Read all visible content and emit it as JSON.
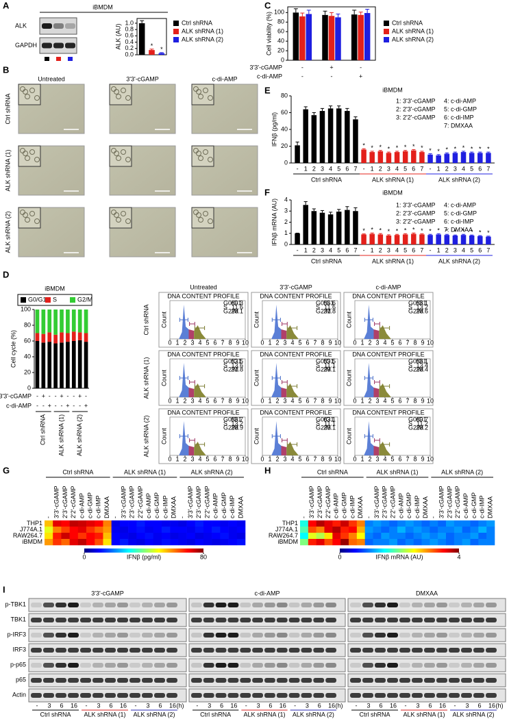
{
  "panel_letters": [
    "A",
    "B",
    "C",
    "D",
    "E",
    "F",
    "G",
    "H",
    "I"
  ],
  "blot_a": {
    "title": "iBMDM",
    "rows": [
      "ALK",
      "GAPDH"
    ],
    "lane_colors": [
      "#000000",
      "#e3201b",
      "#1f1fe0"
    ]
  },
  "micrographs": {
    "columns": [
      "Untreated",
      "3'3'-cGAMP",
      "c-di-AMP"
    ],
    "rows": [
      "Ctrl shRNA",
      "ALK shRNA (1)",
      "ALK shRNA (2)"
    ]
  },
  "flow": {
    "columns": [
      "Untreated",
      "3'3'-cGAMP",
      "c-di-AMP"
    ],
    "rows": [
      "Ctrl shRNA",
      "ALK shRNA (1)",
      "ALK shRNA (2)"
    ],
    "title": "DNA CONTENT PROFILE",
    "y_label": "Count",
    "xticks": [
      0,
      1,
      2,
      3,
      4,
      5,
      6,
      7,
      8,
      9,
      10
    ],
    "stat_names": [
      "G0/G1",
      "S",
      "G2/M"
    ],
    "stats": [
      [
        [
          60.3,
          11.6,
          28.1
        ],
        [
          56.6,
          11.6,
          31.8
        ],
        [
          58.1,
          13.2,
          28.6
        ]
      ],
      [
        [
          53.5,
          13.6,
          31.8
        ],
        [
          59.5,
          11.1,
          29.1
        ],
        [
          58.1,
          13.4,
          28.4
        ]
      ],
      [
        [
          58.7,
          13.2,
          28.9
        ],
        [
          63.1,
          11.1,
          25.1
        ],
        [
          60.7,
          11.2,
          28.2
        ]
      ]
    ]
  },
  "blot_i": {
    "panels": [
      "3'3'-cGAMP",
      "c-di-AMP",
      "DMXAA"
    ],
    "rows": [
      "p-TBK1",
      "TBK1",
      "p-IRF3",
      "IRF3",
      "p-p65",
      "p65",
      "Actin"
    ],
    "lanes": [
      "-",
      "3",
      "6",
      "16"
    ],
    "unit": "(h)",
    "groups": [
      {
        "name": "Ctrl shRNA",
        "color": "#000000"
      },
      {
        "name": "ALK shRNA (1)",
        "color": "#d42020"
      },
      {
        "name": "ALK shRNA (2)",
        "color": "#2a2ab0"
      }
    ]
  },
  "chart_data": [
    {
      "type": "bar",
      "y_label": "ALK (AU)",
      "ylim": [
        0,
        1.15
      ],
      "yticks": [
        {
          "value": 0,
          "label": "0.0"
        },
        0.2,
        0.4,
        0.6,
        0.8,
        {
          "value": 1,
          "label": "1.0"
        }
      ],
      "significance": "*",
      "series": [
        {
          "name": "Ctrl shRNA",
          "color": "#000000",
          "values": [
            1.0
          ],
          "errors": [
            0.08
          ],
          "significant": false
        },
        {
          "name": "ALK shRNA (1)",
          "color": "#e3201b",
          "values": [
            0.15
          ],
          "errors": [
            0.03
          ],
          "significant": true
        },
        {
          "name": "ALK shRNA (2)",
          "color": "#1f1fe0",
          "values": [
            0.05
          ],
          "errors": [
            0.02
          ],
          "significant": true
        }
      ]
    },
    {
      "type": "bar",
      "y_label": "Cell viability (%)",
      "ylim": [
        0,
        112
      ],
      "yticks": [
        0,
        20,
        40,
        60,
        80,
        100
      ],
      "treatments": [
        {
          "label": "3'3'-cGAMP",
          "signs": [
            "-",
            "+",
            "-"
          ]
        },
        {
          "label": "c-di-AMP",
          "signs": [
            "-",
            "-",
            "+"
          ]
        }
      ],
      "series": [
        {
          "name": "Ctrl shRNA",
          "color": "#000000",
          "values": [
            100,
            95,
            96
          ],
          "errors": [
            8,
            8,
            9
          ]
        },
        {
          "name": "ALK shRNA (1)",
          "color": "#e3201b",
          "values": [
            92,
            93,
            95
          ],
          "errors": [
            7,
            7,
            6
          ]
        },
        {
          "name": "ALK shRNA (2)",
          "color": "#1f1fe0",
          "values": [
            97,
            90,
            99
          ],
          "errors": [
            8,
            7,
            8
          ]
        }
      ]
    },
    {
      "type": "bar",
      "title": "iBMDM",
      "y_label": "IFNβ (pg/ml)",
      "ylim": [
        0,
        80
      ],
      "yticks": [
        0,
        20,
        40,
        60,
        80
      ],
      "categories": [
        "-",
        "1",
        "2",
        "3",
        "4",
        "5",
        "6",
        "7"
      ],
      "legend_text": [
        "1: 3'3'-cGAMP",
        "2: 2'3'-cGAMP",
        "3: 2'2'-cGAMP",
        "4: c-di-AMP",
        "5: c-di-GMP",
        "6: c-di-IMP",
        "7: DMXAA"
      ],
      "significance": "*",
      "series": [
        {
          "name": "Ctrl shRNA",
          "color": "#000000",
          "values": [
            21,
            64,
            57,
            62,
            65,
            65,
            62,
            52
          ],
          "errors": [
            4,
            3,
            3,
            3,
            3,
            3,
            3,
            3
          ],
          "significant": false
        },
        {
          "name": "ALK shRNA (1)",
          "color": "#e3201b",
          "values": [
            16,
            13,
            14,
            12,
            13,
            14,
            15,
            13
          ],
          "errors": [
            1,
            1,
            1,
            1,
            1,
            1,
            1,
            1
          ],
          "significant": true
        },
        {
          "name": "ALK shRNA (2)",
          "color": "#1f1fe0",
          "values": [
            10,
            9,
            11,
            12,
            13,
            12,
            12,
            12
          ],
          "errors": [
            1,
            1,
            1,
            1,
            1,
            1,
            1,
            1
          ],
          "significant": true
        }
      ]
    },
    {
      "type": "bar",
      "title": "iBMDM",
      "y_label": "IFNβ mRNA (AU)",
      "ylim": [
        0,
        4
      ],
      "yticks": [
        0,
        1,
        2,
        3,
        4
      ],
      "categories": [
        "-",
        "1",
        "2",
        "3",
        "4",
        "5",
        "6",
        "7"
      ],
      "legend_text": [
        "1: 3'3'-cGAMP",
        "2: 2'3'-cGAMP",
        "3: 2'2'-cGAMP",
        "4: c-di-AMP",
        "5: c-di-GMP",
        "6: c-di-IMP",
        "7: DMXAA"
      ],
      "significance": "*",
      "series": [
        {
          "name": "Ctrl shRNA",
          "color": "#000000",
          "values": [
            1.0,
            3.55,
            3.0,
            2.85,
            2.7,
            2.95,
            3.1,
            3.0
          ],
          "errors": [
            0.02,
            0.3,
            0.2,
            0.2,
            0.2,
            0.2,
            0.3,
            0.3
          ],
          "significant": false
        },
        {
          "name": "ALK shRNA (1)",
          "color": "#e3201b",
          "values": [
            0.9,
            0.95,
            0.9,
            0.8,
            0.85,
            0.9,
            0.95,
            0.9
          ],
          "errors": [
            0.05,
            0.08,
            0.08,
            0.07,
            0.06,
            0.07,
            0.08,
            0.06
          ],
          "significant": true
        },
        {
          "name": "ALK shRNA (2)",
          "color": "#1f1fe0",
          "values": [
            0.85,
            0.9,
            0.85,
            0.8,
            0.85,
            0.8,
            0.75,
            0.7
          ],
          "errors": [
            0.06,
            0.07,
            0.06,
            0.05,
            0.06,
            0.05,
            0.05,
            0.05
          ],
          "significant": true
        }
      ]
    },
    {
      "type": "stacked_bar",
      "title": "iBMDM",
      "y_label": "Cell cycle (%)",
      "ylim": [
        0,
        100
      ],
      "yticks": [
        0,
        20,
        40,
        60,
        80,
        100
      ],
      "treatments": [
        {
          "label": "3'3'-cGAMP",
          "signs": [
            "-",
            "+",
            "-",
            "-",
            "+",
            "-",
            "-",
            "+",
            "-"
          ]
        },
        {
          "label": "c-di-AMP",
          "signs": [
            "-",
            "-",
            "+",
            "-",
            "-",
            "+",
            "-",
            "-",
            "+"
          ]
        }
      ],
      "groups": [
        "Ctrl shRNA",
        "ALK shRNA (1)",
        "ALK shRNA (2)"
      ],
      "series": [
        {
          "name": "G0/G1",
          "color": "#000000",
          "values": [
            60,
            58,
            59,
            57,
            58,
            59,
            60,
            61,
            59
          ]
        },
        {
          "name": "S",
          "color": "#e3201b",
          "values": [
            10,
            11,
            12,
            11,
            13,
            11,
            12,
            10,
            11
          ]
        },
        {
          "name": "G2/M",
          "color": "#33cc33",
          "values": [
            30,
            31,
            29,
            32,
            29,
            30,
            28,
            29,
            30
          ]
        }
      ]
    },
    {
      "type": "heatmap",
      "colorbar_label": "IFNβ (pg/ml)",
      "clim": [
        0,
        80
      ],
      "cticks": [
        0,
        80
      ],
      "groups": [
        {
          "name": "Ctrl shRNA",
          "color": "#000000"
        },
        {
          "name": "ALK shRNA (1)",
          "color": "#d42020"
        },
        {
          "name": "ALK shRNA (2)",
          "color": "#2a2ab0"
        }
      ],
      "columns": [
        "-",
        "3'3'-cGAMP",
        "2'3'-cGAMP",
        "2'2'-cGAMP",
        "c-di-AMP",
        "c-di-GMP",
        "c-di-IMP",
        "DMXAA"
      ],
      "rows": [
        "THP1",
        "J774A.1",
        "RAW264.7",
        "iBMDM"
      ],
      "values": [
        [
          55,
          72,
          70,
          75,
          74,
          72,
          70,
          60,
          8,
          10,
          10,
          12,
          10,
          10,
          9,
          9,
          8,
          10,
          12,
          10,
          10,
          9,
          10,
          9
        ],
        [
          48,
          60,
          65,
          70,
          72,
          66,
          62,
          58,
          9,
          8,
          10,
          11,
          9,
          10,
          12,
          10,
          10,
          9,
          11,
          10,
          12,
          10,
          9,
          10
        ],
        [
          52,
          68,
          74,
          70,
          66,
          70,
          68,
          55,
          10,
          9,
          8,
          10,
          11,
          9,
          10,
          8,
          9,
          10,
          8,
          9,
          10,
          11,
          9,
          8
        ],
        [
          58,
          66,
          62,
          72,
          75,
          70,
          64,
          52,
          10,
          12,
          9,
          8,
          10,
          9,
          11,
          10,
          9,
          8,
          10,
          9,
          8,
          9,
          10,
          11
        ]
      ]
    },
    {
      "type": "heatmap",
      "colorbar_label": "IFNβ mRNA (AU)",
      "clim": [
        0,
        4
      ],
      "cticks": [
        0,
        4
      ],
      "groups": [
        {
          "name": "Ctrl shRNA",
          "color": "#000000"
        },
        {
          "name": "ALK shRNA (1)",
          "color": "#d42020"
        },
        {
          "name": "ALK shRNA (2)",
          "color": "#2a2ab0"
        }
      ],
      "columns": [
        "-",
        "3'3'-cGAMP",
        "2'3'-cGAMP",
        "2'2'-cGAMP",
        "c-di-AMP",
        "c-di-GMP",
        "c-di-IMP",
        "DMXAA"
      ],
      "rows": [
        "THP1",
        "J774A.1",
        "RAW264.7",
        "iBMDM"
      ],
      "values": [
        [
          1.6,
          3.5,
          3.8,
          3.6,
          3.4,
          3.7,
          3.3,
          3.0,
          1.0,
          1.1,
          1.0,
          0.9,
          1.0,
          1.1,
          1.0,
          0.9,
          1.0,
          0.9,
          1.1,
          1.0,
          1.0,
          0.9,
          1.0,
          1.1
        ],
        [
          1.8,
          3.2,
          3.0,
          3.6,
          3.8,
          3.4,
          3.5,
          2.8,
          1.1,
          1.0,
          0.9,
          1.0,
          1.2,
          1.0,
          1.1,
          1.0,
          0.9,
          1.0,
          1.0,
          1.1,
          0.9,
          1.0,
          1.2,
          1.0
        ],
        [
          1.5,
          2.4,
          2.2,
          2.6,
          3.6,
          3.3,
          3.0,
          2.5,
          1.0,
          0.9,
          1.1,
          1.0,
          1.0,
          0.9,
          1.0,
          1.1,
          1.0,
          1.1,
          0.9,
          1.0,
          1.0,
          1.1,
          0.9,
          1.0
        ],
        [
          2.0,
          3.4,
          3.6,
          3.2,
          3.5,
          3.9,
          3.1,
          3.0,
          0.9,
          1.0,
          1.0,
          1.1,
          0.9,
          1.0,
          0.9,
          1.0,
          1.1,
          1.0,
          0.9,
          1.0,
          1.1,
          0.9,
          1.0,
          1.0
        ]
      ]
    }
  ]
}
